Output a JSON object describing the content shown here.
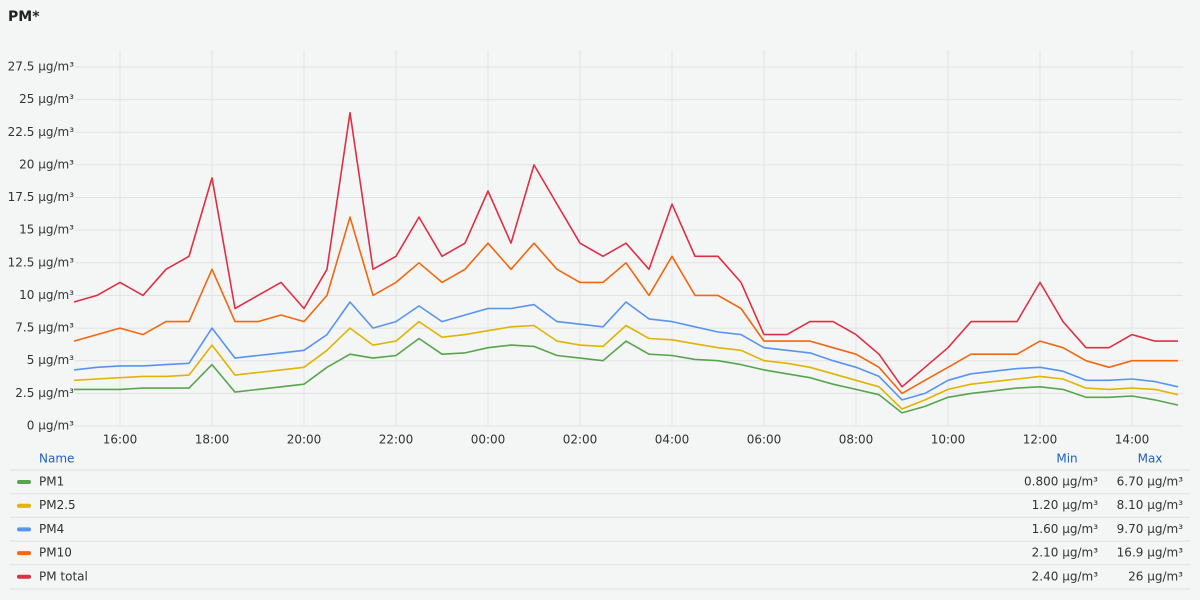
{
  "chart_data": {
    "type": "line",
    "title": "PM*",
    "categories": [
      "15:00",
      "15:30",
      "16:00",
      "16:30",
      "17:00",
      "17:30",
      "18:00",
      "18:30",
      "19:00",
      "19:30",
      "20:00",
      "20:30",
      "21:00",
      "21:30",
      "22:00",
      "22:30",
      "23:00",
      "23:30",
      "00:00",
      "00:30",
      "01:00",
      "01:30",
      "02:00",
      "02:30",
      "03:00",
      "03:30",
      "04:00",
      "04:30",
      "05:00",
      "05:30",
      "06:00",
      "06:30",
      "07:00",
      "07:30",
      "08:00",
      "08:30",
      "09:00",
      "09:30",
      "10:00",
      "10:30",
      "11:00",
      "11:30",
      "12:00",
      "12:30",
      "13:00",
      "13:30",
      "14:00",
      "14:30",
      "15:00"
    ],
    "xticks": [
      "16:00",
      "18:00",
      "20:00",
      "22:00",
      "00:00",
      "02:00",
      "04:00",
      "06:00",
      "08:00",
      "10:00",
      "12:00",
      "14:00"
    ],
    "ylim": [
      0,
      28.8
    ],
    "yticks": [
      {
        "value": 0,
        "label": "0 µg/m³"
      },
      {
        "value": 2.5,
        "label": "2.5 µg/m³"
      },
      {
        "value": 5,
        "label": "5 µg/m³"
      },
      {
        "value": 7.5,
        "label": "7.5 µg/m³"
      },
      {
        "value": 10,
        "label": "10 µg/m³"
      },
      {
        "value": 12.5,
        "label": "12.5 µg/m³"
      },
      {
        "value": 15,
        "label": "15 µg/m³"
      },
      {
        "value": 17.5,
        "label": "17.5 µg/m³"
      },
      {
        "value": 20,
        "label": "20 µg/m³"
      },
      {
        "value": 22.5,
        "label": "22.5 µg/m³"
      },
      {
        "value": 25,
        "label": "25 µg/m³"
      },
      {
        "value": 27.5,
        "label": "27.5 µg/m³"
      }
    ],
    "grid": true,
    "legend_columns": [
      "Name",
      "Min",
      "Max"
    ],
    "series": [
      {
        "name": "PM1",
        "color": "#56a64b",
        "min": "0.800 µg/m³",
        "max": "6.70 µg/m³",
        "values": [
          2.8,
          2.8,
          2.8,
          2.9,
          2.9,
          2.9,
          4.7,
          2.6,
          2.8,
          3,
          3.2,
          4.5,
          5.5,
          5.2,
          5.4,
          6.7,
          5.5,
          5.6,
          6,
          6.2,
          6.1,
          5.4,
          5.2,
          5,
          6.5,
          5.5,
          5.4,
          5.1,
          5,
          4.7,
          4.3,
          4,
          3.7,
          3.2,
          2.8,
          2.4,
          1,
          1.5,
          2.2,
          2.5,
          2.7,
          2.9,
          3,
          2.8,
          2.2,
          2.2,
          2.3,
          2,
          1.6
        ]
      },
      {
        "name": "PM2.5",
        "color": "#e0b400",
        "min": "1.20 µg/m³",
        "max": "8.10 µg/m³",
        "values": [
          3.5,
          3.6,
          3.7,
          3.8,
          3.8,
          3.9,
          6.2,
          3.9,
          4.1,
          4.3,
          4.5,
          5.8,
          7.5,
          6.2,
          6.5,
          8,
          6.8,
          7,
          7.3,
          7.6,
          7.7,
          6.5,
          6.2,
          6.1,
          7.7,
          6.7,
          6.6,
          6.3,
          6,
          5.8,
          5,
          4.8,
          4.5,
          4,
          3.5,
          3,
          1.3,
          2,
          2.8,
          3.2,
          3.4,
          3.6,
          3.8,
          3.6,
          2.9,
          2.8,
          2.9,
          2.8,
          2.4
        ]
      },
      {
        "name": "PM4",
        "color": "#5794f2",
        "min": "1.60 µg/m³",
        "max": "9.70 µg/m³",
        "values": [
          4.3,
          4.5,
          4.6,
          4.6,
          4.7,
          4.8,
          7.5,
          5.2,
          5.4,
          5.6,
          5.8,
          7,
          9.5,
          7.5,
          8,
          9.2,
          8,
          8.5,
          9,
          9,
          9.3,
          8,
          7.8,
          7.6,
          9.5,
          8.2,
          8,
          7.6,
          7.2,
          7,
          6,
          5.8,
          5.6,
          5,
          4.5,
          3.8,
          2,
          2.5,
          3.5,
          4,
          4.2,
          4.4,
          4.5,
          4.2,
          3.5,
          3.5,
          3.6,
          3.4,
          3
        ]
      },
      {
        "name": "PM10",
        "color": "#f2670f",
        "min": "2.10 µg/m³",
        "max": "16.9 µg/m³",
        "values": [
          6.5,
          7,
          7.5,
          7,
          8,
          8,
          12,
          8,
          8,
          8.5,
          8,
          10,
          16,
          10,
          11,
          12.5,
          11,
          12,
          14,
          12,
          14,
          12,
          11,
          11,
          12.5,
          10,
          13,
          10,
          10,
          9,
          6.5,
          6.5,
          6.5,
          6,
          5.5,
          4.5,
          2.5,
          3.5,
          4.5,
          5.5,
          5.5,
          5.5,
          6.5,
          6,
          5,
          4.5,
          5,
          5,
          5
        ]
      },
      {
        "name": "PM total",
        "color": "#e02f44",
        "min": "2.40 µg/m³",
        "max": "26 µg/m³",
        "values": [
          9.5,
          10,
          11,
          10,
          12,
          13,
          19,
          9,
          10,
          11,
          9,
          12,
          24,
          12,
          13,
          16,
          13,
          14,
          18,
          14,
          20,
          17,
          14,
          13,
          14,
          12,
          17,
          13,
          13,
          11,
          7,
          7,
          8,
          8,
          7,
          5.5,
          3,
          4.5,
          6,
          8,
          8,
          8,
          11,
          8,
          6,
          6,
          7,
          6.5,
          6.5
        ]
      }
    ]
  }
}
